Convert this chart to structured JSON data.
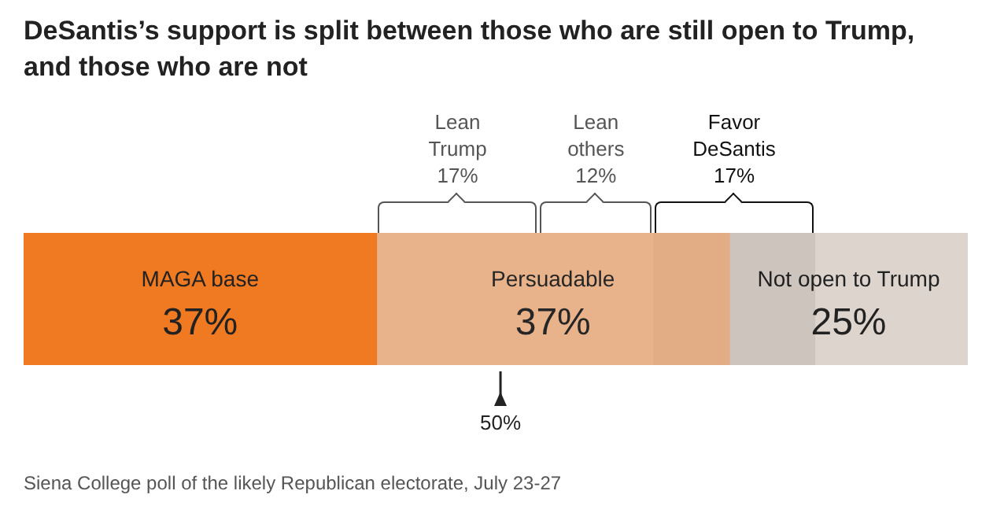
{
  "chart_data": {
    "type": "bar",
    "orientation": "horizontal",
    "stacked": true,
    "title": "DeSantis’s support is split between those who are still open to Trump, and those who are not",
    "categories": [
      null
    ],
    "series": [
      {
        "name": "MAGA base",
        "color": "#f07a22",
        "values": [
          37
        ],
        "value_labels": [
          "37%"
        ]
      },
      {
        "name": "Persuadable",
        "color": "#f5bb90",
        "values": [
          37
        ],
        "value_labels": [
          "37%"
        ]
      },
      {
        "name": "Not open to Trump",
        "color": "#ddd4cd",
        "values": [
          25
        ],
        "value_labels": [
          "25%"
        ]
      }
    ],
    "xlim": [
      0,
      99
    ],
    "bands": [
      {
        "axis": "x",
        "from": 37,
        "to": 54,
        "label": "Lean Trump 17%",
        "color": "#555555"
      },
      {
        "axis": "x",
        "from": 54,
        "to": 66,
        "label": "Lean others 12%",
        "color": "#555555"
      },
      {
        "axis": "x",
        "from": 66,
        "to": 83,
        "label": "Favor DeSantis 17%",
        "color": "#111111"
      }
    ],
    "ref_lines": [
      {
        "axis": "x",
        "value": 50,
        "label": "50%"
      }
    ],
    "annotations": [
      "Siena College poll of the likely Republican electorate, July 23-27"
    ],
    "legend": false
  }
}
